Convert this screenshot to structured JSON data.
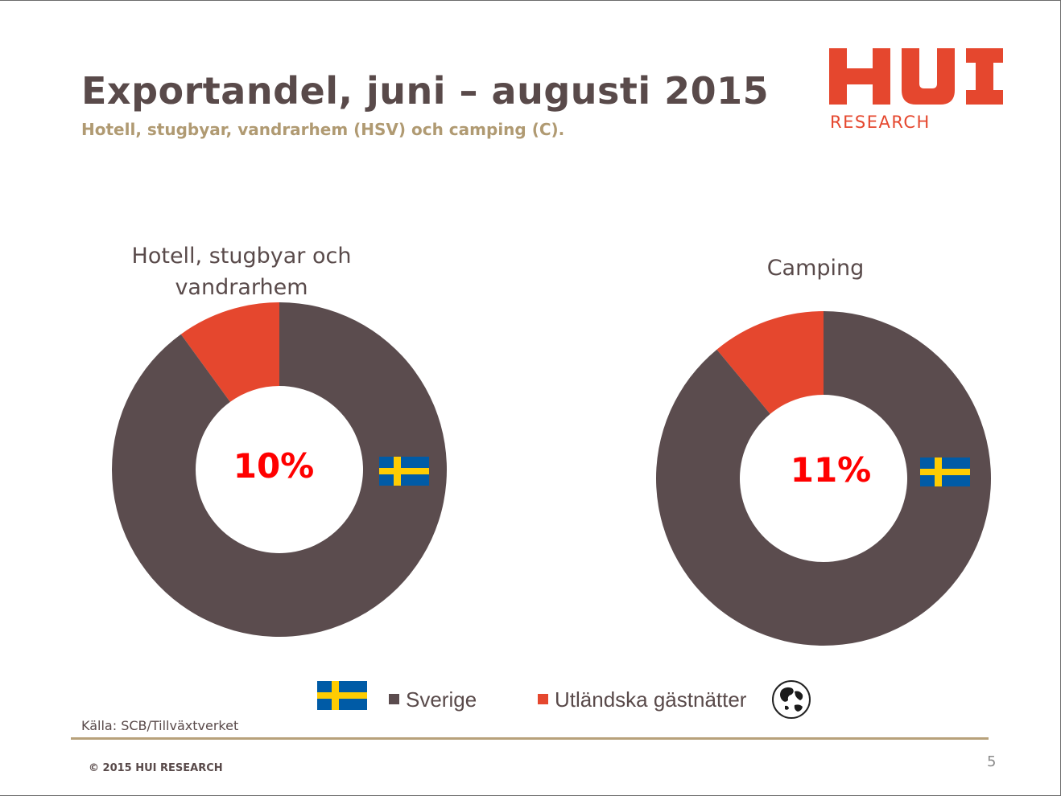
{
  "header": {
    "title": "Exportandel, juni – augusti 2015",
    "subtitle": "Hotell, stugbyar, vandrarhem (HSV) och camping (C).",
    "logo_text": "HUI",
    "logo_subtext": "RESEARCH"
  },
  "colors": {
    "sverige": "#5b4c4e",
    "utlandska": "#e5472e",
    "center_label": "#ff0000",
    "flag_blue": "#005ba6",
    "flag_yellow": "#fecc02"
  },
  "chart_data": [
    {
      "type": "pie",
      "title_lines": [
        "Hotell, stugbyar och",
        "vandrarhem"
      ],
      "center_label": "10%",
      "categories": [
        "Utländska gästnätter",
        "Sverige"
      ],
      "values": [
        10,
        90
      ],
      "icon": "swedish-flag-icon"
    },
    {
      "type": "pie",
      "title_lines": [
        "Camping"
      ],
      "center_label": "11%",
      "categories": [
        "Utländska gästnätter",
        "Sverige"
      ],
      "values": [
        11,
        89
      ],
      "icon": "swedish-flag-icon"
    }
  ],
  "legend": {
    "entries": [
      {
        "label": "Sverige",
        "color": "#5b4c4e",
        "icon": "swedish-flag-icon"
      },
      {
        "label": "Utländska gästnätter",
        "color": "#e5472e",
        "icon": "globe-icon"
      }
    ]
  },
  "footer": {
    "source": "Källa: SCB/Tillväxtverket",
    "copyright": "© 2015 HUI RESEARCH",
    "page_number": "5"
  }
}
